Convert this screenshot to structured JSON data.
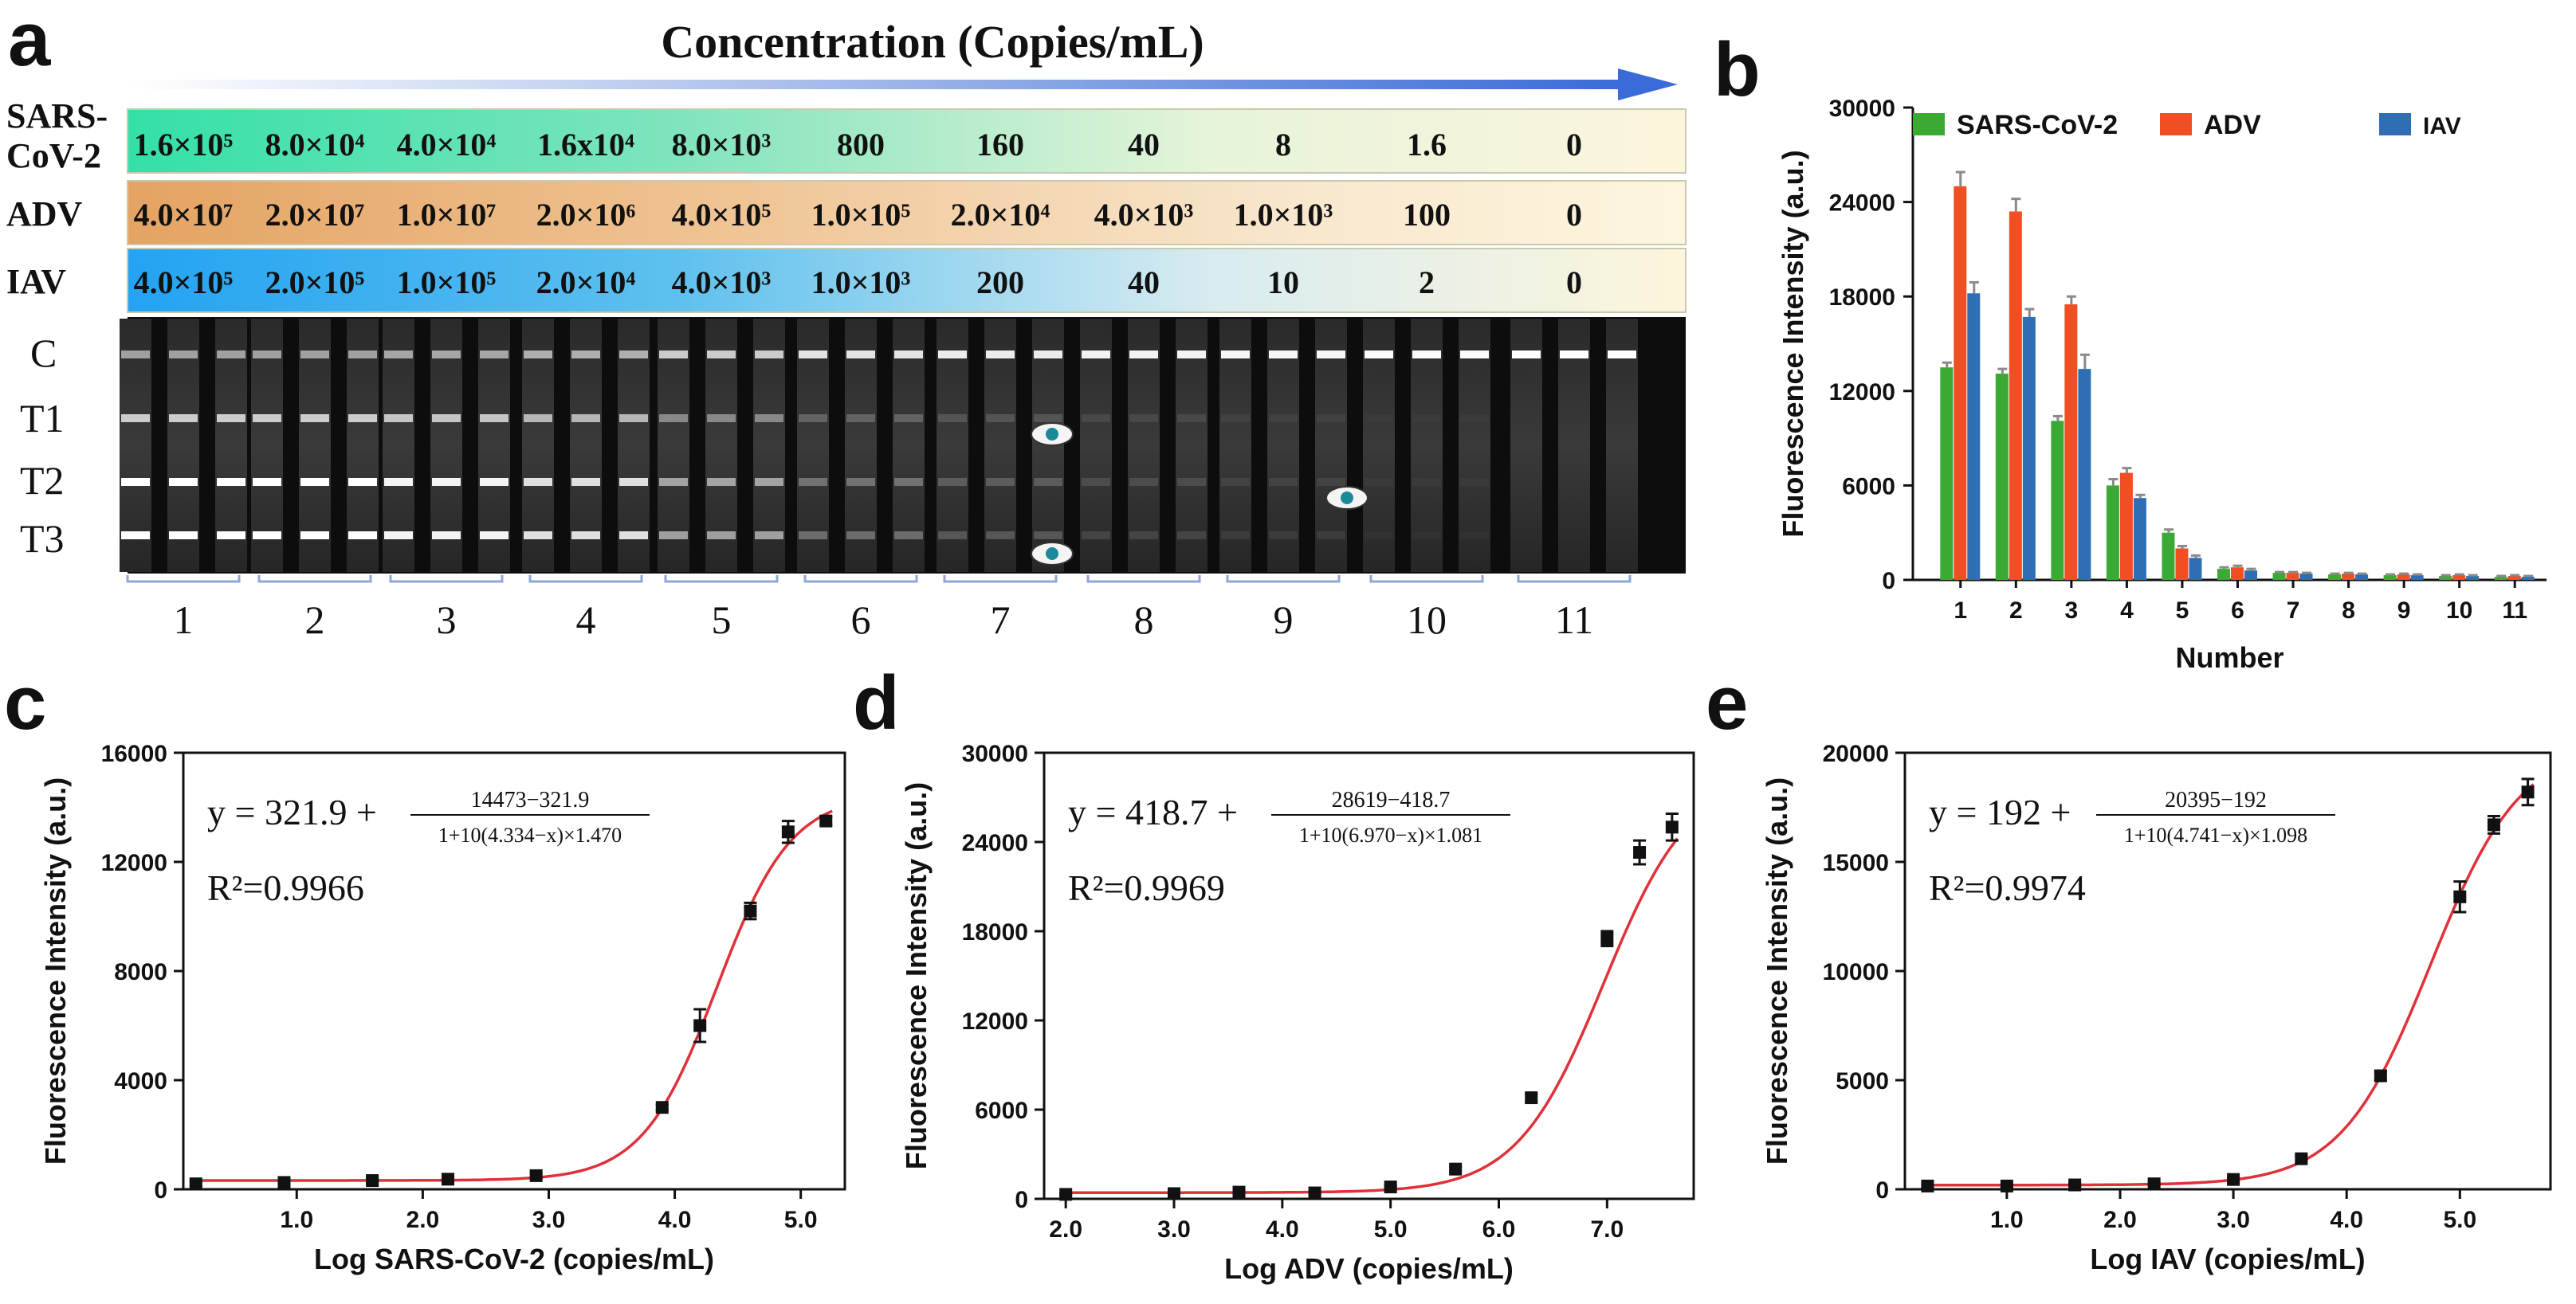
{
  "panel_letters": [
    "a",
    "b",
    "c",
    "d",
    "e"
  ],
  "panel_a": {
    "header": "Concentration (Copies/mL)",
    "rows": [
      {
        "label": "SARS-\nCoV-2",
        "values": [
          "1.6×10⁵",
          "8.0×10⁴",
          "4.0×10⁴",
          "1.6x10⁴",
          "8.0×10³",
          "800",
          "160",
          "40",
          "8",
          "1.6",
          "0"
        ]
      },
      {
        "label": "ADV",
        "values": [
          "4.0×10⁷",
          "2.0×10⁷",
          "1.0×10⁷",
          "2.0×10⁶",
          "4.0×10⁵",
          "1.0×10⁵",
          "2.0×10⁴",
          "4.0×10³",
          "1.0×10³",
          "100",
          "0"
        ]
      },
      {
        "label": "IAV",
        "values": [
          "4.0×10⁵",
          "2.0×10⁵",
          "1.0×10⁵",
          "2.0×10⁴",
          "4.0×10³",
          "1.0×10³",
          "200",
          "40",
          "10",
          "2",
          "0"
        ]
      }
    ],
    "strip_labels": [
      "C",
      "T1",
      "T2",
      "T3"
    ],
    "lane_numbers": [
      "1",
      "2",
      "3",
      "4",
      "5",
      "6",
      "7",
      "8",
      "9",
      "10",
      "11"
    ],
    "colors": {
      "sars": "#3fd9a5",
      "adv": "#e6a866",
      "iav": "#2eaaf0",
      "arrow": "#3b6fd6"
    }
  },
  "chart_data": [
    {
      "panel": "b",
      "type": "bar",
      "title": "",
      "xlabel": "Number",
      "ylabel": "Fluorescence Intensity (a.u.)",
      "ylim": [
        0,
        30000
      ],
      "yticks": [
        "0",
        "6000",
        "12000",
        "18000",
        "24000",
        "30000"
      ],
      "categories": [
        "1",
        "2",
        "3",
        "4",
        "5",
        "6",
        "7",
        "8",
        "9",
        "10",
        "11"
      ],
      "series": [
        {
          "name": "SARS-CoV-2",
          "color": "#3aaa35",
          "values": [
            13500,
            13100,
            10100,
            6000,
            3000,
            700,
            450,
            350,
            300,
            250,
            200
          ],
          "errors": [
            300,
            300,
            300,
            400,
            200,
            100,
            50,
            50,
            50,
            50,
            50
          ]
        },
        {
          "name": "ADV",
          "color": "#f04e23",
          "values": [
            25000,
            23400,
            17500,
            6800,
            2000,
            800,
            450,
            400,
            350,
            300,
            250
          ],
          "errors": [
            900,
            800,
            500,
            300,
            150,
            100,
            50,
            50,
            50,
            50,
            50
          ]
        },
        {
          "name": "IAV",
          "color": "#2f6eb5",
          "values": [
            18200,
            16700,
            13400,
            5200,
            1400,
            600,
            400,
            350,
            300,
            250,
            200
          ],
          "errors": [
            700,
            500,
            900,
            200,
            150,
            100,
            50,
            50,
            50,
            50,
            50
          ]
        }
      ],
      "legend": "top"
    },
    {
      "panel": "c",
      "type": "scatter",
      "xlabel": "Log SARS-CoV-2 (copies/mL)",
      "ylabel": "Fluorescence Intensity (a.u.)",
      "xlim": [
        0.1,
        5.35
      ],
      "ylim": [
        0,
        16000
      ],
      "xticks": [
        1.0,
        2.0,
        3.0,
        4.0,
        5.0
      ],
      "xtick_labels": [
        "1.0",
        "2.0",
        "3.0",
        "4.0",
        "5.0"
      ],
      "yticks": [
        0,
        4000,
        8000,
        12000,
        16000
      ],
      "ytick_labels": [
        "0",
        "4000",
        "8000",
        "12000",
        "16000"
      ],
      "x": [
        0.2,
        0.9,
        1.6,
        2.2,
        2.9,
        3.9,
        4.2,
        4.6,
        4.9,
        5.2
      ],
      "y": [
        200,
        250,
        320,
        370,
        500,
        3000,
        6000,
        10200,
        13100,
        13500
      ],
      "errors": [
        80,
        80,
        80,
        80,
        80,
        100,
        600,
        300,
        400,
        150
      ],
      "fit": {
        "bottom": 321.9,
        "top": 14473,
        "logec50": 4.334,
        "hill": 1.47
      },
      "equation": {
        "lhs": "y = 321.9 + ",
        "numerator": "14473−321.9",
        "denominator": "1+10(4.334−x)×1.470"
      },
      "r2": "R²=0.9966"
    },
    {
      "panel": "d",
      "type": "scatter",
      "xlabel": "Log ADV (copies/mL)",
      "ylabel": "Fluorescence Intensity (a.u.)",
      "xlim": [
        1.8,
        7.8
      ],
      "ylim": [
        0,
        30000
      ],
      "xticks": [
        2.0,
        3.0,
        4.0,
        5.0,
        6.0,
        7.0
      ],
      "xtick_labels": [
        "2.0",
        "3.0",
        "4.0",
        "5.0",
        "6.0",
        "7.0"
      ],
      "yticks": [
        0,
        6000,
        12000,
        18000,
        24000,
        30000
      ],
      "ytick_labels": [
        "0",
        "6000",
        "12000",
        "18000",
        "24000",
        "30000"
      ],
      "x": [
        2.0,
        3.0,
        3.6,
        4.3,
        5.0,
        5.6,
        6.3,
        7.0,
        7.3,
        7.6
      ],
      "y": [
        300,
        350,
        450,
        400,
        800,
        2000,
        6800,
        17500,
        23300,
        25000
      ],
      "errors": [
        80,
        80,
        80,
        80,
        80,
        150,
        250,
        500,
        800,
        900
      ],
      "fit": {
        "bottom": 418.7,
        "top": 28619,
        "logec50": 6.97,
        "hill": 1.081
      },
      "equation": {
        "lhs": "y = 418.7 + ",
        "numerator": "28619−418.7",
        "denominator": "1+10(6.970−x)×1.081"
      },
      "r2": "R²=0.9969"
    },
    {
      "panel": "e",
      "type": "scatter",
      "xlabel": "Log IAV (copies/mL)",
      "ylabel": "Fluorescence Intensity (a.u.)",
      "xlim": [
        0.1,
        5.8
      ],
      "ylim": [
        0,
        20000
      ],
      "xticks": [
        1.0,
        2.0,
        3.0,
        4.0,
        5.0
      ],
      "xtick_labels": [
        "1.0",
        "2.0",
        "3.0",
        "4.0",
        "5.0"
      ],
      "yticks": [
        0,
        5000,
        10000,
        15000,
        20000
      ],
      "ytick_labels": [
        "0",
        "5000",
        "10000",
        "15000",
        "20000"
      ],
      "x": [
        0.3,
        1.0,
        1.6,
        2.3,
        3.0,
        3.6,
        4.3,
        5.0,
        5.3,
        5.6
      ],
      "y": [
        150,
        150,
        200,
        250,
        450,
        1400,
        5200,
        13400,
        16700,
        18200
      ],
      "errors": [
        60,
        60,
        60,
        60,
        80,
        150,
        200,
        700,
        400,
        600
      ],
      "fit": {
        "bottom": 192,
        "top": 20395,
        "logec50": 4.741,
        "hill": 1.098
      },
      "equation": {
        "lhs": "y = 192 + ",
        "numerator": "20395−192",
        "denominator": "1+10(4.741−x)×1.098"
      },
      "r2": "R²=0.9974"
    }
  ]
}
